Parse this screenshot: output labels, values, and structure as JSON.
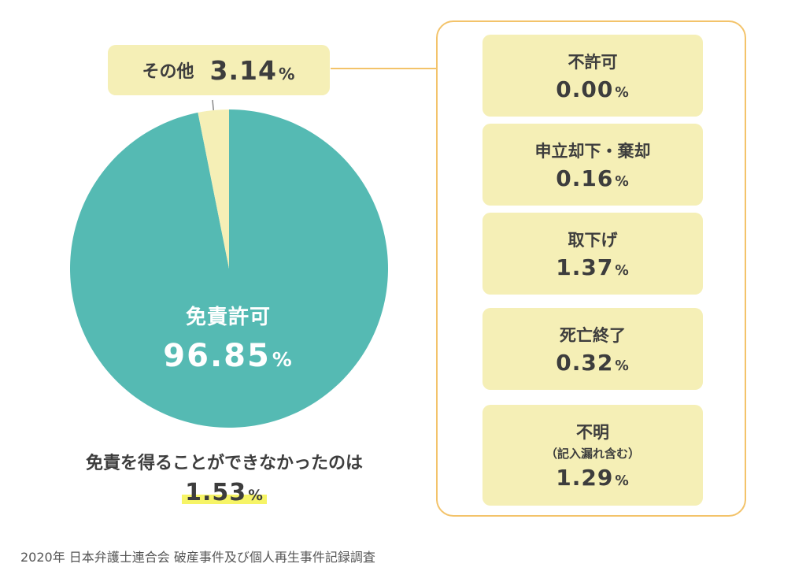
{
  "chart_data": {
    "type": "pie",
    "slices": [
      {
        "label": "免責許可",
        "value": 96.85,
        "value_text": "96.85",
        "color": "#55bab3"
      },
      {
        "label": "その他",
        "value": 3.14,
        "value_text": "3.14",
        "color": "#f5efb6"
      }
    ],
    "unit": "%",
    "other_breakdown": [
      {
        "label": "不許可",
        "sublabel": "",
        "value": 0.0,
        "value_text": "0.00"
      },
      {
        "label": "申立却下・棄却",
        "sublabel": "",
        "value": 0.16,
        "value_text": "0.16"
      },
      {
        "label": "取下げ",
        "sublabel": "",
        "value": 1.37,
        "value_text": "1.37"
      },
      {
        "label": "死亡終了",
        "sublabel": "",
        "value": 0.32,
        "value_text": "0.32"
      },
      {
        "label": "不明",
        "sublabel": "（記入漏れ含む）",
        "value": 1.29,
        "value_text": "1.29"
      }
    ],
    "note": {
      "text": "免責を得ることができなかったのは",
      "value_text": "1.53"
    },
    "source": "2020年 日本弁護士連合会 破産事件及び個人再生事件記録調査"
  }
}
